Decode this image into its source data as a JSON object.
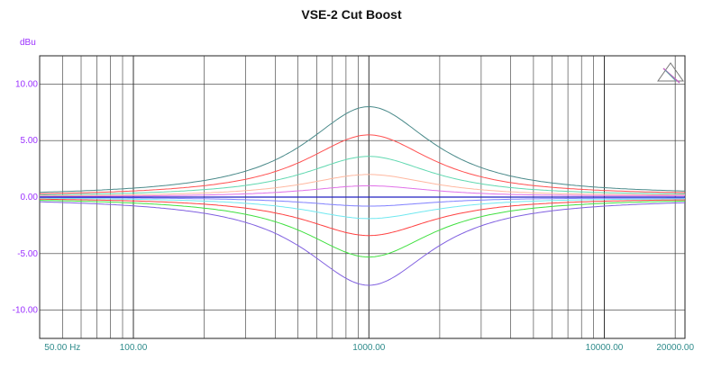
{
  "chart_data": {
    "type": "line",
    "title": "VSE-2 Cut Boost",
    "ylabel": "dBu",
    "xscale": "log",
    "xlim": [
      40,
      22000
    ],
    "ylim": [
      -12.5,
      12.5
    ],
    "grid": true,
    "y_ticks": [
      10,
      5,
      0,
      -5,
      -10
    ],
    "y_tick_labels": [
      "10.00",
      "5.00",
      "0.00",
      "-5.00",
      "-10.00"
    ],
    "x_tick_labels": [
      {
        "value": 50,
        "label": "50.00 Hz"
      },
      {
        "value": 100,
        "label": "100.00"
      },
      {
        "value": 1000,
        "label": "1000.00"
      },
      {
        "value": 10000,
        "label": "10000.00"
      },
      {
        "value": 20000,
        "label": "20000.00"
      }
    ],
    "series": [
      {
        "color": "#4a8a8a",
        "peak_db": 8.0
      },
      {
        "color": "#ff5050",
        "peak_db": 5.5
      },
      {
        "color": "#60d8b0",
        "peak_db": 3.6
      },
      {
        "color": "#ffb8a0",
        "peak_db": 2.0
      },
      {
        "color": "#e070e8",
        "peak_db": 1.0
      },
      {
        "color": "#8080ff",
        "peak_db": -0.8
      },
      {
        "color": "#70e8f0",
        "peak_db": -1.9
      },
      {
        "color": "#ff4040",
        "peak_db": -3.4
      },
      {
        "color": "#40e040",
        "peak_db": -5.3
      },
      {
        "color": "#8060e0",
        "peak_db": -7.8
      }
    ],
    "center_frequency_hz": 1000,
    "reference_line_db": 0
  }
}
